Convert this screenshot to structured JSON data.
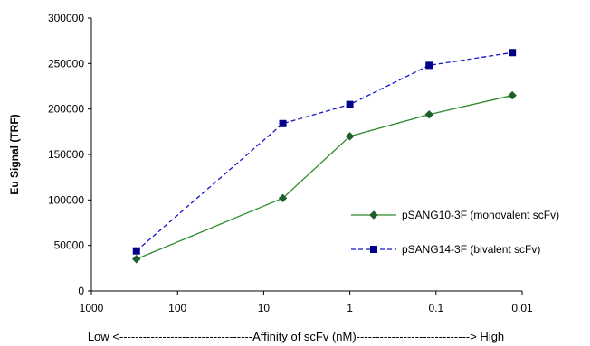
{
  "chart_data": {
    "type": "line",
    "xlabel": "Low <----------------------------------Affinity of scFv (nM)-----------------------------> High",
    "ylabel": "Eu Signal (TRF)",
    "x_scale": "log",
    "x_reversed": true,
    "xlim": [
      1000,
      0.01
    ],
    "ylim": [
      0,
      300000
    ],
    "x_ticks": [
      "1000",
      "100",
      "10",
      "1",
      "0.1",
      "0.01"
    ],
    "y_ticks": [
      "0",
      "50000",
      "100000",
      "150000",
      "200000",
      "250000",
      "300000"
    ],
    "grid": false,
    "legend_position": "right",
    "series": [
      {
        "name": "pSANG10-3F (monovalent scFv)",
        "color": "#2e8b2e",
        "marker_color": "#1f5f2a",
        "marker": "diamond",
        "line_style": "solid",
        "x": [
          300,
          6,
          1,
          0.12,
          0.013
        ],
        "y": [
          35000,
          102000,
          170000,
          194000,
          215000
        ]
      },
      {
        "name": "pSANG14-3F (bivalent scFv)",
        "color": "#1515c8",
        "marker_color": "#00008b",
        "marker": "square",
        "line_style": "dashed",
        "x": [
          300,
          6,
          1,
          0.12,
          0.013
        ],
        "y": [
          44000,
          184000,
          205000,
          248000,
          262000
        ]
      }
    ]
  }
}
